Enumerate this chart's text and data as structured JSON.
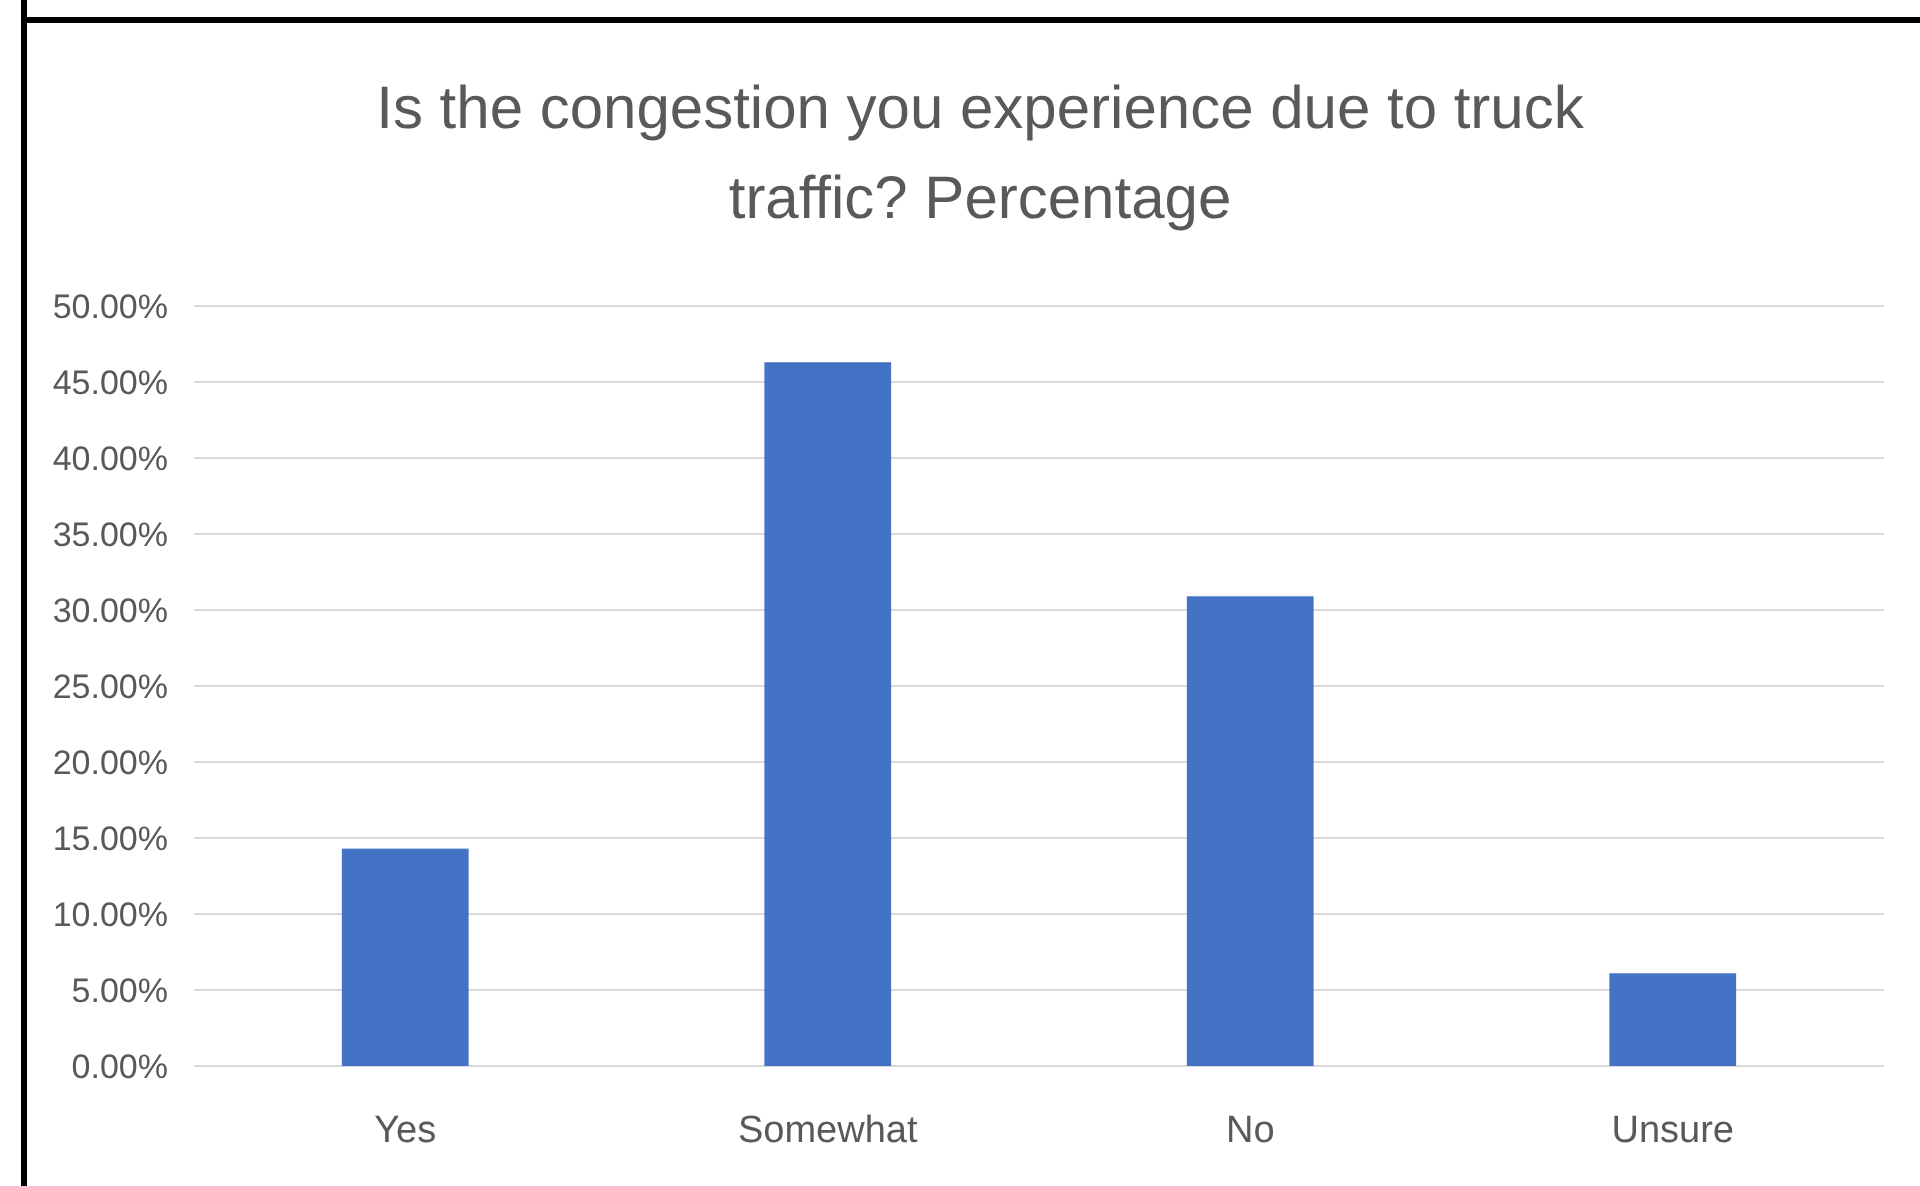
{
  "chart_data": {
    "type": "bar",
    "title": "Is the congestion you experience due to truck traffic? Percentage",
    "categories": [
      "Yes",
      "Somewhat",
      "No",
      "Unsure"
    ],
    "values": [
      14.3,
      46.3,
      30.9,
      6.1
    ],
    "color": "#4472c4",
    "ylim": [
      0,
      50
    ],
    "yticks": [
      {
        "value": 0,
        "label": "0.00%"
      },
      {
        "value": 5,
        "label": "5.00%"
      },
      {
        "value": 10,
        "label": "10.00%"
      },
      {
        "value": 15,
        "label": "15.00%"
      },
      {
        "value": 20,
        "label": "20.00%"
      },
      {
        "value": 25,
        "label": "25.00%"
      },
      {
        "value": 30,
        "label": "30.00%"
      },
      {
        "value": 35,
        "label": "35.00%"
      },
      {
        "value": 40,
        "label": "40.00%"
      },
      {
        "value": 45,
        "label": "45.00%"
      },
      {
        "value": 50,
        "label": "50.00%"
      }
    ],
    "grid": true
  }
}
